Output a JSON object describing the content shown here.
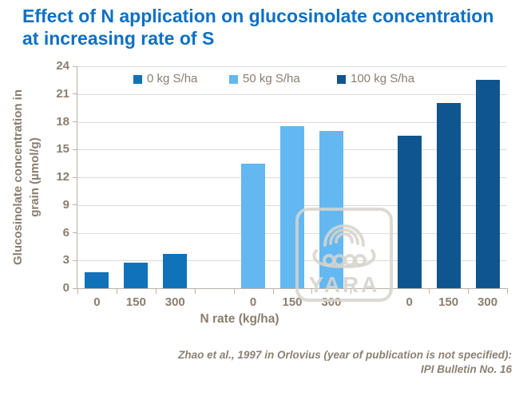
{
  "header": {
    "line1": "Effect of N application on glucosinolate concentration",
    "line2": "at increasing rate of S"
  },
  "chart_data": {
    "type": "bar",
    "title": "Effect of N application on glucosinolate concentration at increasing rate of S",
    "categories": [
      "0",
      "150",
      "300"
    ],
    "series": [
      {
        "name": "0 kg S/ha",
        "color": "#1072b8",
        "values": [
          1.7,
          2.8,
          3.7
        ]
      },
      {
        "name": "50 kg S/ha",
        "color": "#63b8f2",
        "values": [
          13.5,
          17.5,
          17
        ]
      },
      {
        "name": "100 kg S/ha",
        "color": "#10568e",
        "values": [
          16.5,
          20,
          22.5
        ]
      }
    ],
    "xlabel": "N rate (kg/ha)",
    "ylabel": "Glucosinolate concentration in grain (µmol/g)",
    "ylabel_lines": [
      "Glucosinolate concentration in",
      "grain (µmol/g)"
    ],
    "ylim": [
      0,
      24
    ],
    "ytick_step": 3,
    "grid": true,
    "legend_position": "top-inside"
  },
  "watermark": {
    "text": "YARA"
  },
  "citation": {
    "line1": "Zhao et al., 1997 in Orlovius (year of publication is not specified):",
    "line2": "IPI Bulletin No. 16"
  },
  "colors": {
    "title": "#0e70c4",
    "axis_text": "#8a7e6e",
    "grid": "#dcdcdc",
    "axis_line": "#b8b2aa",
    "citation": "#8b8173",
    "background": "#ffffff"
  }
}
